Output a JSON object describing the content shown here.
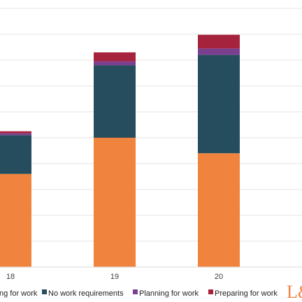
{
  "chart_data": {
    "type": "bar",
    "stacked": true,
    "categories": [
      "18",
      "19",
      "20"
    ],
    "series": [
      {
        "name": "Looking for work",
        "color": "#F0843E",
        "values": [
          36,
          50,
          44
        ]
      },
      {
        "name": "No work requirements",
        "color": "#254D5D",
        "values": [
          15,
          28,
          38
        ]
      },
      {
        "name": "Planning for work",
        "color": "#7B3F8F",
        "values": [
          0.7,
          1.5,
          2.5
        ]
      },
      {
        "name": "Preparing for work",
        "color": "#A6233E",
        "values": [
          0.8,
          3.5,
          5.3
        ]
      }
    ],
    "legend": {
      "placement": "bottom",
      "entries": [
        "ng for work",
        "No work requirements",
        "Planning for work",
        "Preparing for work"
      ]
    },
    "grid": true,
    "ylim": [
      0,
      100
    ],
    "title": "",
    "xlabel": "",
    "ylabel": ""
  },
  "logo": {
    "text": "L&",
    "color": "#F0843E"
  }
}
